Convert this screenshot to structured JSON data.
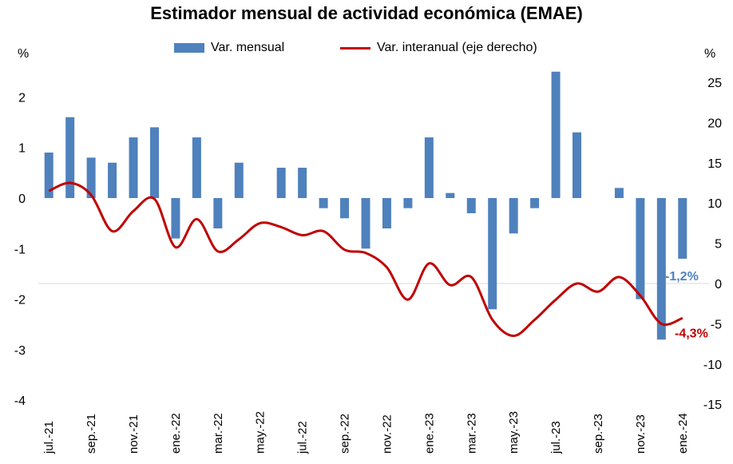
{
  "chart_data": {
    "type": "bar+line",
    "title": "Estimador mensual de actividad económica (EMAE)",
    "left_axis_unit": "%",
    "right_axis_unit": "%",
    "left_ylim": [
      -4,
      2.5
    ],
    "left_ticks": [
      "2",
      "1",
      "0",
      "-1",
      "-2",
      "-3",
      "-4"
    ],
    "right_ylim": [
      -15,
      25
    ],
    "right_ticks": [
      "25",
      "20",
      "15",
      "10",
      "5",
      "0",
      "-5",
      "-10",
      "-15"
    ],
    "x_tick_labels": [
      "jul.-21",
      "sep.-21",
      "nov.-21",
      "ene.-22",
      "mar.-22",
      "may.-22",
      "jul.-22",
      "sep.-22",
      "nov.-22",
      "ene.-23",
      "mar.-23",
      "may.-23",
      "jul.-23",
      "sep.-23",
      "nov.-23",
      "ene.-24"
    ],
    "categories": [
      "jul.-21",
      "ago.-21",
      "sep.-21",
      "oct.-21",
      "nov.-21",
      "dic.-21",
      "ene.-22",
      "feb.-22",
      "mar.-22",
      "abr.-22",
      "may.-22",
      "jun.-22",
      "jul.-22",
      "ago.-22",
      "sep.-22",
      "oct.-22",
      "nov.-22",
      "dic.-22",
      "ene.-23",
      "feb.-23",
      "mar.-23",
      "abr.-23",
      "may.-23",
      "jun.-23",
      "jul.-23",
      "ago.-23",
      "sep.-23",
      "oct.-23",
      "nov.-23",
      "dic.-23",
      "ene.-24"
    ],
    "series": [
      {
        "name": "Var. mensual",
        "type": "bar",
        "axis": "left",
        "color": "#4f81bd",
        "values": [
          0.9,
          1.6,
          0.8,
          0.7,
          1.2,
          1.4,
          -0.8,
          1.2,
          -0.6,
          0.7,
          0.0,
          0.6,
          0.6,
          -0.2,
          -0.4,
          -1.0,
          -0.6,
          -0.2,
          1.2,
          0.1,
          -0.3,
          -2.2,
          -0.7,
          -0.2,
          2.5,
          1.3,
          0.0,
          0.2,
          -2.0,
          -2.8,
          -1.2
        ]
      },
      {
        "name": "Var. interanual (eje derecho)",
        "type": "line",
        "axis": "right",
        "color": "#c00000",
        "values": [
          11.5,
          12.5,
          11.0,
          6.5,
          9.0,
          10.5,
          4.5,
          8.0,
          4.0,
          5.5,
          7.5,
          7.0,
          6.0,
          6.5,
          4.2,
          3.8,
          2.0,
          -2.0,
          2.5,
          -0.2,
          0.8,
          -4.5,
          -6.5,
          -4.5,
          -2.0,
          0.0,
          -1.0,
          0.8,
          -1.5,
          -5.0,
          -4.3
        ]
      }
    ],
    "annotations": [
      {
        "text": "-1,2%",
        "series": "Var. mensual",
        "color": "#4f81bd"
      },
      {
        "text": "-4,3%",
        "series": "Var. interanual (eje derecho)",
        "color": "#c00000"
      }
    ],
    "legend": "top",
    "grid": false
  }
}
